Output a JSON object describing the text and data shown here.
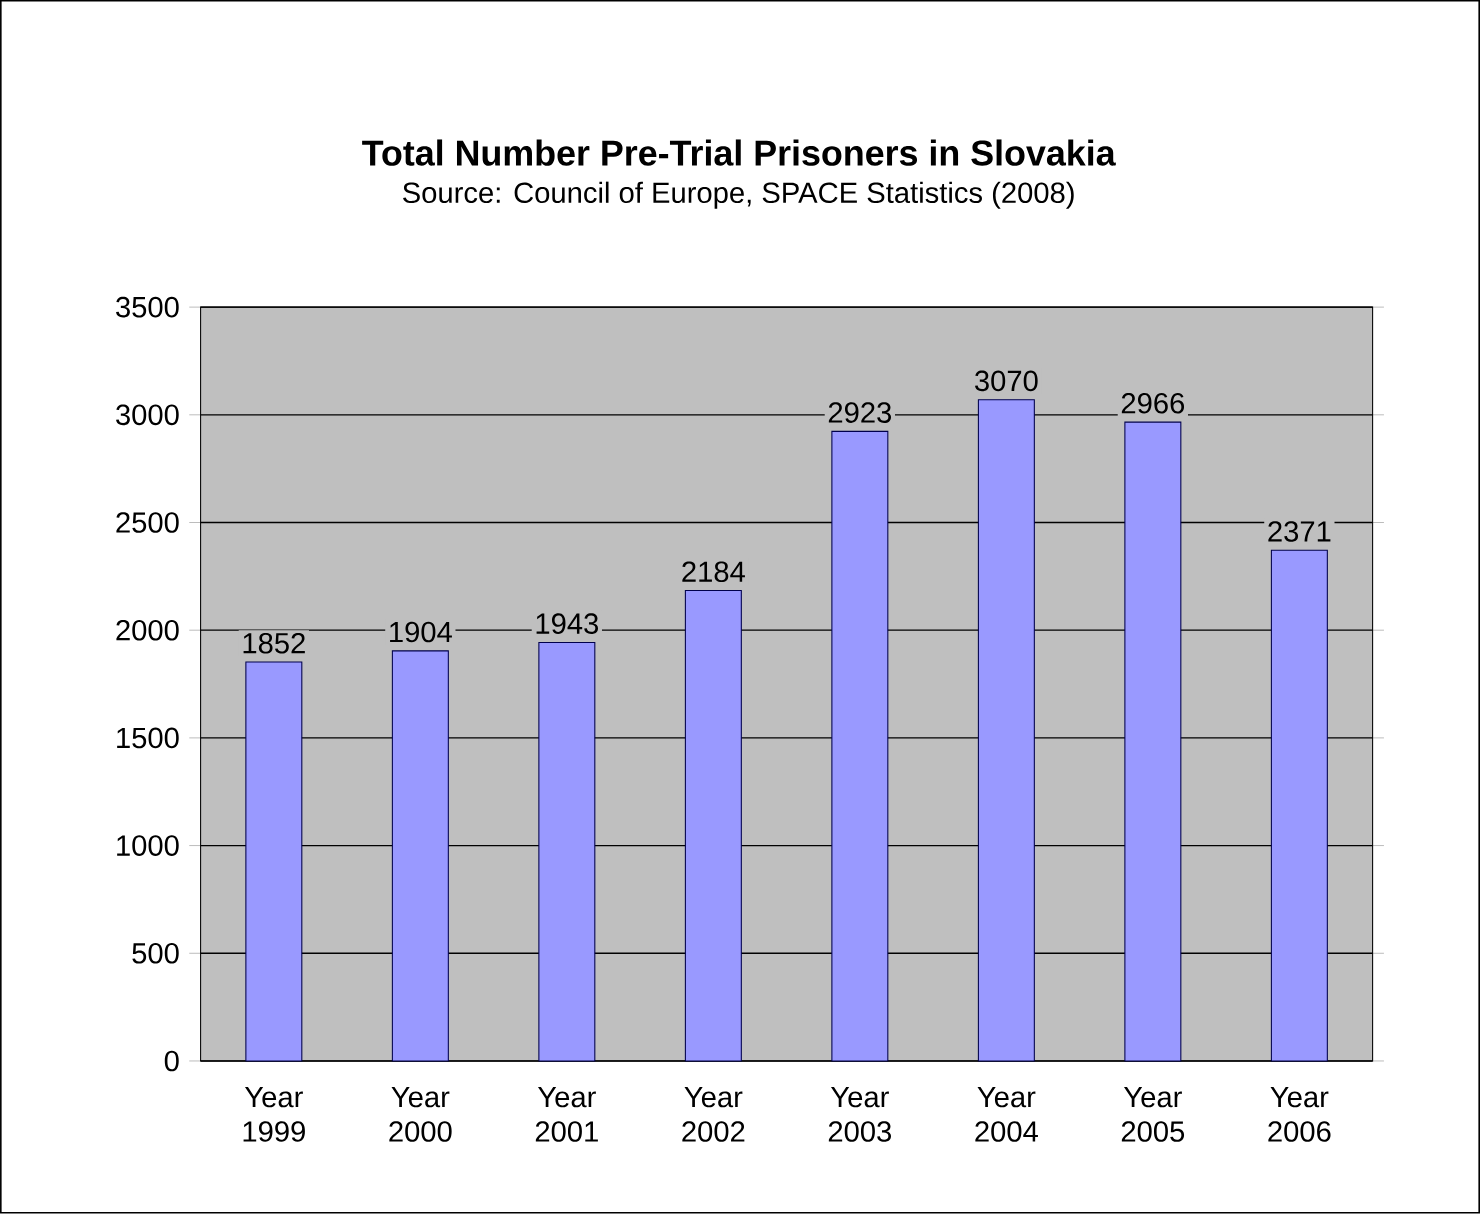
{
  "chart_data": {
    "type": "bar",
    "title": "Total Number Pre-Trial Prisoners in Slovakia",
    "subtitle": "Source: Council of Europe, SPACE Statistics (2008)",
    "categories": [
      "Year 1999",
      "Year 2000",
      "Year 2001",
      "Year 2002",
      "Year 2003",
      "Year 2004",
      "Year 2005",
      "Year 2006"
    ],
    "values": [
      1852,
      1904,
      1943,
      2184,
      2923,
      3070,
      2966,
      2371
    ],
    "color": "#9999ff",
    "ylim": [
      0,
      3500
    ],
    "yticks": [
      0,
      500,
      1000,
      1500,
      2000,
      2500,
      3000,
      3500
    ],
    "grid": "y",
    "data_labels": true
  }
}
